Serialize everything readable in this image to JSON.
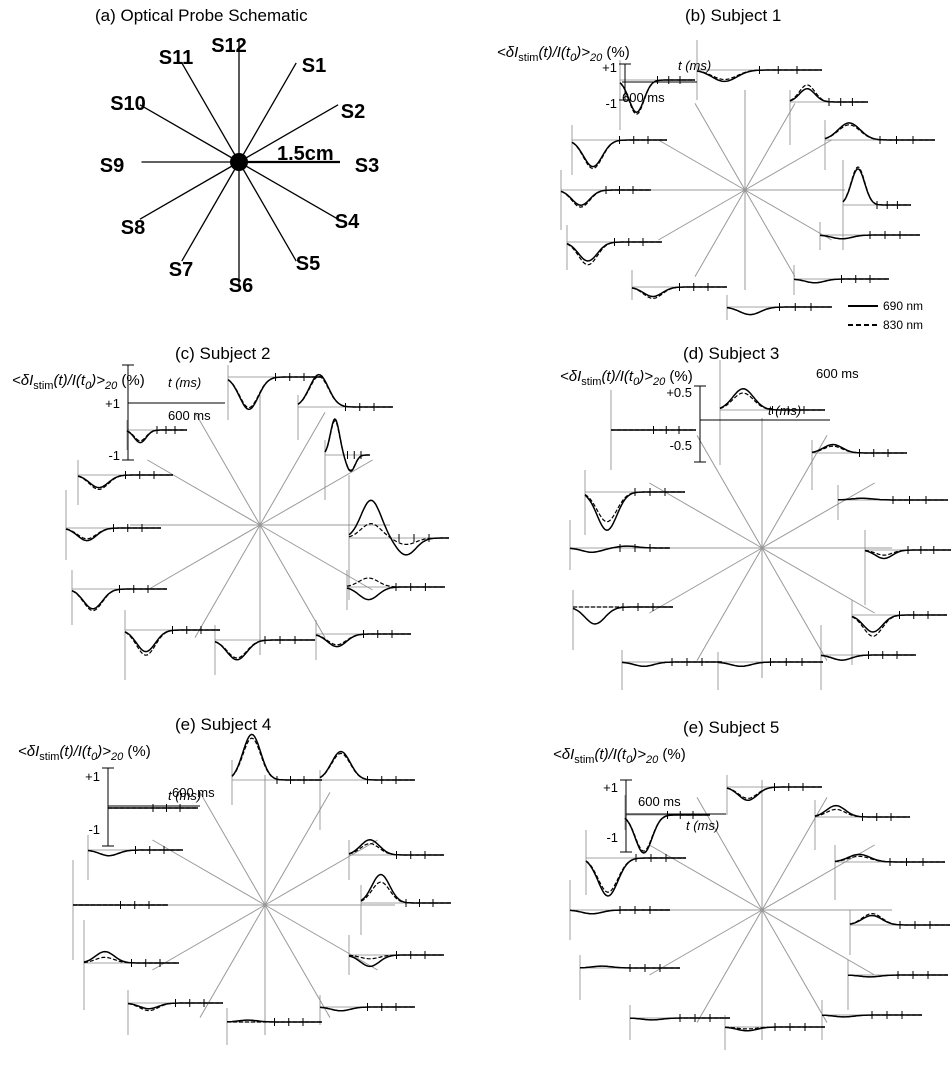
{
  "panels": {
    "a": {
      "title": "(a) Optical Probe Schematic"
    },
    "b": {
      "title": "(b) Subject 1"
    },
    "c": {
      "title": "(c) Subject 2"
    },
    "d": {
      "title": "(d) Subject 3"
    },
    "e": {
      "title": "(e) Subject 4"
    },
    "f": {
      "title": "(e) Subject 5"
    }
  },
  "probe": {
    "labels": [
      "S12",
      "S1",
      "S2",
      "S3",
      "S4",
      "S5",
      "S6",
      "S7",
      "S8",
      "S9",
      "S10",
      "S11"
    ],
    "scale_label": "1.5cm"
  },
  "axis_text": {
    "ylabel_prefix": "<δI",
    "ylabel_sub1": "stim",
    "ylabel_mid1": "(t)/I(t",
    "ylabel_sub2": "0",
    "ylabel_mid2": ")>",
    "ylabel_sub3": "20",
    "ylabel_unit": "(%)",
    "xlabel": "t (ms)",
    "duration_label": "600 ms",
    "plus_one": "+1",
    "minus_one": "-1",
    "plus_half": "+0.5",
    "minus_half": "-0.5"
  },
  "legend": [
    {
      "label": "690 nm",
      "style": "solid"
    },
    {
      "label": "830 nm",
      "style": "dashed"
    }
  ],
  "chart_data": [
    {
      "type": "line",
      "title": "(b) Subject 1",
      "xlabel": "t (ms)",
      "ylabel": "<δIstim(t)/I(t0)>20 (%)",
      "ylim": [
        -1,
        1
      ],
      "x_duration_ms": 600,
      "sources": [
        "S1",
        "S2",
        "S3",
        "S4",
        "S5",
        "S6",
        "S7",
        "S8",
        "S9",
        "S10",
        "S11",
        "S12"
      ],
      "series": [
        {
          "name": "690 nm",
          "peak_by_source": [
            -0.3,
            0.35,
            0.45,
            0.95,
            -0.1,
            -0.1,
            -0.2,
            -0.25,
            -0.5,
            -0.4,
            -0.7,
            -0.85
          ]
        },
        {
          "name": "830 nm",
          "peak_by_source": [
            -0.25,
            0.45,
            0.4,
            1.0,
            -0.1,
            -0.1,
            -0.2,
            -0.3,
            -0.6,
            -0.45,
            -0.75,
            -0.9
          ]
        }
      ],
      "legend_position": "bottom-right"
    },
    {
      "type": "line",
      "title": "(c) Subject 2",
      "xlabel": "t (ms)",
      "ylabel": "<δIstim(t)/I(t0)>20 (%)",
      "ylim": [
        -1,
        1
      ],
      "x_duration_ms": 600,
      "sources": [
        "S1",
        "S2",
        "S3",
        "S4",
        "S5",
        "S6",
        "S7",
        "S8",
        "S9",
        "S10",
        "S11",
        "S12"
      ],
      "series": [
        {
          "name": "690 nm",
          "peak_by_source": [
            0.9,
            1.0,
            1.05,
            -0.35,
            -0.35,
            -0.55,
            -0.6,
            -0.55,
            -0.35,
            -0.35,
            -0.35,
            -0.9
          ]
        },
        {
          "name": "830 nm",
          "peak_by_source": [
            0.85,
            0.95,
            0.4,
            0.25,
            -0.3,
            -0.5,
            -0.7,
            -0.6,
            -0.3,
            -0.4,
            -0.3,
            -0.85
          ]
        }
      ]
    },
    {
      "type": "line",
      "title": "(d) Subject 3",
      "xlabel": "t (ms)",
      "ylabel": "<δIstim(t)/I(t0)>20 (%)",
      "ylim": [
        -0.5,
        0.5
      ],
      "x_duration_ms": 600,
      "sources": [
        "S1",
        "S2",
        "S3",
        "S4",
        "S5",
        "S6",
        "S7",
        "S8",
        "S9",
        "S10",
        "S11",
        "S12"
      ],
      "series": [
        {
          "name": "690 nm",
          "peak_by_source": [
            0.1,
            0.02,
            -0.1,
            -0.2,
            -0.06,
            -0.05,
            -0.05,
            -0.2,
            -0.05,
            -0.45,
            0.0,
            0.25
          ]
        },
        {
          "name": "830 nm",
          "peak_by_source": [
            0.08,
            0.02,
            -0.06,
            -0.25,
            -0.06,
            -0.05,
            -0.05,
            0.0,
            -0.05,
            -0.35,
            0.0,
            0.2
          ]
        }
      ]
    },
    {
      "type": "line",
      "title": "(e) Subject 4",
      "xlabel": "t (ms)",
      "ylabel": "<δIstim(t)/I(t0)>20 (%)",
      "ylim": [
        -1,
        1
      ],
      "x_duration_ms": 600,
      "sources": [
        "S1",
        "S2",
        "S3",
        "S4",
        "S5",
        "S6",
        "S7",
        "S8",
        "S9",
        "S10",
        "S11",
        "S12"
      ],
      "series": [
        {
          "name": "690 nm",
          "peak_by_source": [
            0.75,
            0.4,
            0.75,
            -0.3,
            -0.1,
            0.05,
            -0.15,
            0.3,
            0.0,
            -0.15,
            0.0,
            1.2
          ]
        },
        {
          "name": "830 nm",
          "peak_by_source": [
            0.7,
            0.3,
            0.55,
            -0.1,
            -0.1,
            0.0,
            -0.2,
            0.15,
            0.0,
            -0.15,
            0.0,
            1.1
          ]
        }
      ]
    },
    {
      "type": "line",
      "title": "(e) Subject 5",
      "xlabel": "t (ms)",
      "ylabel": "<δIstim(t)/I(t0)>20 (%)",
      "ylim": [
        -1,
        1
      ],
      "x_duration_ms": 600,
      "sources": [
        "S1",
        "S2",
        "S3",
        "S4",
        "S5",
        "S6",
        "S7",
        "S8",
        "S9",
        "S10",
        "S11",
        "S12"
      ],
      "series": [
        {
          "name": "690 nm",
          "peak_by_source": [
            0.3,
            0.2,
            0.25,
            -0.05,
            -0.05,
            -0.1,
            -0.05,
            0.05,
            -0.1,
            -1.0,
            -1.0,
            -0.35
          ]
        },
        {
          "name": "830 nm",
          "peak_by_source": [
            0.2,
            0.15,
            0.3,
            -0.05,
            -0.05,
            -0.05,
            -0.05,
            0.05,
            -0.1,
            -0.9,
            -0.95,
            -0.3
          ]
        }
      ]
    }
  ]
}
